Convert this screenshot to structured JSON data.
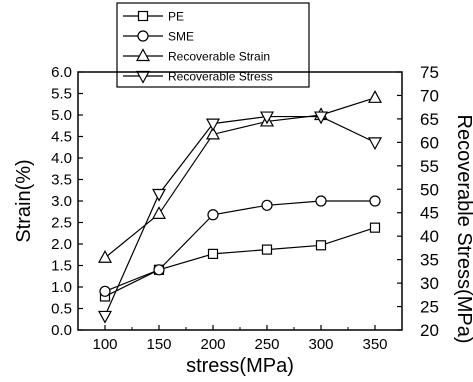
{
  "chart_data": {
    "type": "line",
    "title": "",
    "xlabel": "stress(MPa)",
    "ylabel_left": "Strain(%)",
    "ylabel_right": "Recoverable Stress(MPa)",
    "x": [
      100,
      150,
      200,
      250,
      300,
      350
    ],
    "x_ticks": [
      "100",
      "150",
      "200",
      "250",
      "300",
      "350"
    ],
    "xlim": [
      75,
      375
    ],
    "ylim_left": [
      0.0,
      6.0
    ],
    "ylim_right": [
      20,
      75
    ],
    "y_ticks_left": [
      "0.0",
      "0.5",
      "1.0",
      "1.5",
      "2.0",
      "2.5",
      "3.0",
      "3.5",
      "4.0",
      "4.5",
      "5.0",
      "5.5",
      "6.0"
    ],
    "y_ticks_right": [
      "20",
      "25",
      "30",
      "35",
      "40",
      "45",
      "50",
      "55",
      "60",
      "65",
      "70",
      "75"
    ],
    "grid": false,
    "legend_position": "top-center",
    "series": [
      {
        "name": "PE",
        "axis": "left",
        "marker": "square",
        "values": [
          0.78,
          1.4,
          1.77,
          1.87,
          1.97,
          2.38
        ]
      },
      {
        "name": "SME",
        "axis": "left",
        "marker": "circle",
        "values": [
          0.9,
          1.4,
          2.68,
          2.9,
          3.0,
          3.0
        ]
      },
      {
        "name": "Recoverable Strain",
        "axis": "left",
        "marker": "triangle-up",
        "values": [
          1.68,
          2.7,
          4.55,
          4.85,
          5.0,
          5.4
        ]
      },
      {
        "name": "Recoverable Stress",
        "axis": "right",
        "marker": "triangle-down",
        "values": [
          23,
          49,
          64,
          65.5,
          65.5,
          60
        ]
      }
    ]
  }
}
